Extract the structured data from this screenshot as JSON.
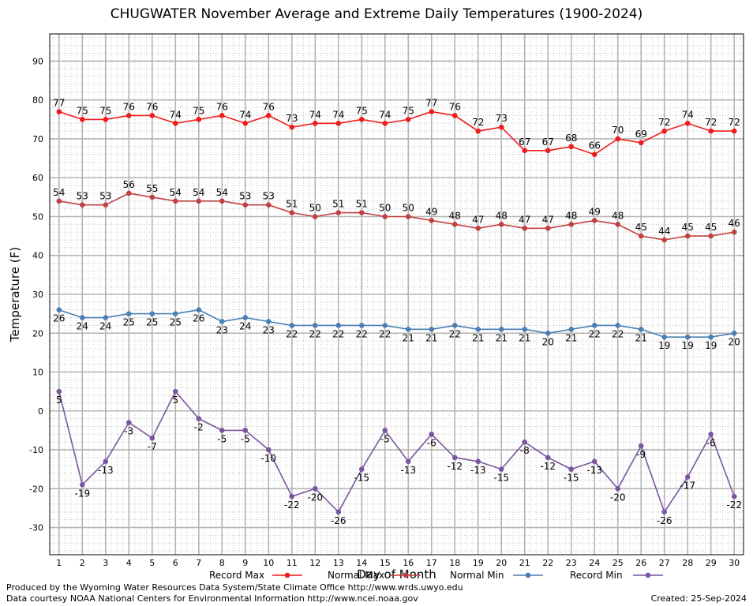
{
  "chart_data": {
    "type": "line",
    "title": "CHUGWATER November Average and Extreme Daily Temperatures (1900-2024)",
    "xlabel": "Day of Month",
    "ylabel": "Temperature (F)",
    "x": [
      1,
      2,
      3,
      4,
      5,
      6,
      7,
      8,
      9,
      10,
      11,
      12,
      13,
      14,
      15,
      16,
      17,
      18,
      19,
      20,
      21,
      22,
      23,
      24,
      25,
      26,
      27,
      28,
      29,
      30
    ],
    "xlim": [
      0.6,
      30.4
    ],
    "ylim": [
      -37,
      97
    ],
    "yticks": [
      -30,
      -20,
      -10,
      0,
      10,
      20,
      30,
      40,
      50,
      60,
      70,
      80,
      90
    ],
    "grid": true,
    "legend_position": "bottom",
    "series": [
      {
        "name": "Record Max",
        "color": "#ee1c1c",
        "values": [
          77,
          75,
          75,
          76,
          76,
          74,
          75,
          76,
          74,
          76,
          73,
          74,
          74,
          75,
          74,
          75,
          77,
          76,
          72,
          73,
          67,
          67,
          68,
          66,
          70,
          69,
          72,
          74,
          72,
          72
        ]
      },
      {
        "name": "Normal Max",
        "color": "#c04040",
        "values": [
          54,
          53,
          53,
          56,
          55,
          54,
          54,
          54,
          53,
          53,
          51,
          50,
          51,
          51,
          50,
          50,
          49,
          48,
          47,
          48,
          47,
          47,
          48,
          49,
          48,
          45,
          44,
          45,
          45,
          46
        ]
      },
      {
        "name": "Normal Min",
        "color": "#4a7fb5",
        "values": [
          26,
          24,
          24,
          25,
          25,
          25,
          26,
          23,
          24,
          23,
          22,
          22,
          22,
          22,
          22,
          21,
          21,
          22,
          21,
          21,
          21,
          20,
          21,
          22,
          22,
          21,
          19,
          19,
          19,
          20
        ]
      },
      {
        "name": "Record Min",
        "color": "#7b56a0",
        "values": [
          5,
          -19,
          -13,
          -3,
          -7,
          5,
          -2,
          -5,
          -5,
          -10,
          -22,
          -20,
          -26,
          -15,
          -5,
          -13,
          -6,
          -12,
          -13,
          -15,
          -8,
          -12,
          -15,
          -13,
          -20,
          -9,
          -26,
          -17,
          -6,
          -22
        ]
      }
    ]
  },
  "footer": {
    "produced_by": "Produced by the Wyoming Water Resources Data System/State Climate Office http://www.wrds.uwyo.edu",
    "courtesy": "Data courtesy NOAA National Centers for Environmental Information http://www.ncei.noaa.gov",
    "created": "Created:  25-Sep-2024"
  }
}
